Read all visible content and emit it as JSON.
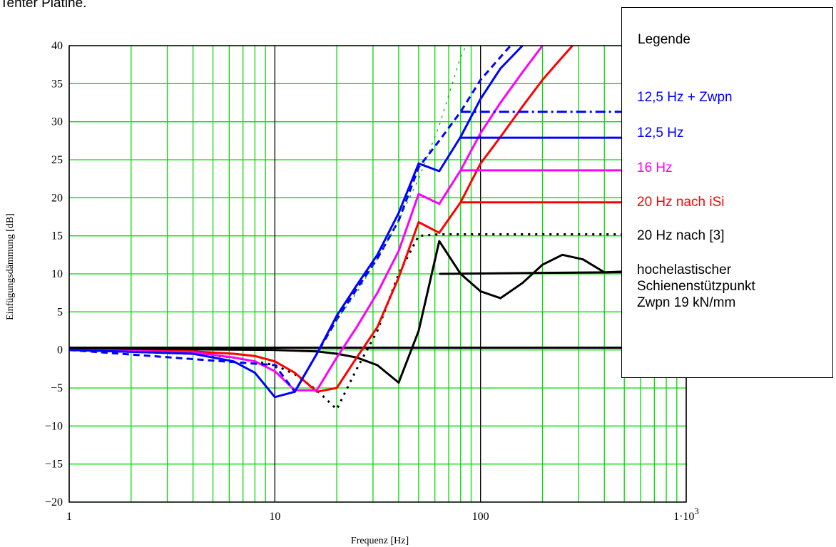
{
  "page": {
    "title_fragment": "Tenter Platine."
  },
  "colors": {
    "grid": "#00dd00",
    "major_grid": "#000000",
    "blue": "#0000ff",
    "magenta": "#ff00ff",
    "red": "#ff0000",
    "black": "#000000"
  },
  "legend": {
    "title": "Legende",
    "entries": [
      {
        "label": "12,5 Hz + Zwpn",
        "color": "#0000ff"
      },
      {
        "label": "12,5 Hz",
        "color": "#0000ff"
      },
      {
        "label": "16 Hz",
        "color": "#ff00ff"
      },
      {
        "label": "20 Hz nach iSi",
        "color": "#ff0000"
      },
      {
        "label": "20 Hz nach [3]",
        "color": "#000000"
      },
      {
        "label": "hochelastischer\nSchienenstützpunkt\nZwpn 19 kN/mm",
        "color": "#000000"
      }
    ]
  },
  "chart_data": {
    "type": "line",
    "xlabel": "Frequenz [Hz]",
    "ylabel": "Einfügungsdämmung [dB]",
    "x_scale": "log",
    "xlim": [
      1,
      1000
    ],
    "ylim": [
      -20,
      40
    ],
    "x_ticks": [
      {
        "value": 1,
        "label": "1"
      },
      {
        "value": 10,
        "label": "10"
      },
      {
        "value": 100,
        "label": "100"
      },
      {
        "value": 1000,
        "label": "1·10",
        "exp": "3"
      }
    ],
    "y_ticks": [
      {
        "value": 40,
        "label": "40"
      },
      {
        "value": 35,
        "label": "35"
      },
      {
        "value": 30,
        "label": "30"
      },
      {
        "value": 25,
        "label": "25"
      },
      {
        "value": 20,
        "label": "20"
      },
      {
        "value": 15,
        "label": "15"
      },
      {
        "value": 10,
        "label": "10"
      },
      {
        "value": 5,
        "label": "5"
      },
      {
        "value": 0,
        "label": "0"
      },
      {
        "value": -5,
        "label": "−5"
      },
      {
        "value": -10,
        "label": "−10"
      },
      {
        "value": -15,
        "label": "−15"
      },
      {
        "value": -20,
        "label": "−20"
      }
    ],
    "grid": true,
    "legend_position": "right",
    "series": [
      {
        "color": "#000000",
        "style": "solid",
        "width": 3,
        "points": [
          [
            1,
            0.3
          ],
          [
            1000,
            0.3
          ]
        ]
      },
      {
        "color": "#000000",
        "style": "solid",
        "width": 3,
        "points": [
          [
            1,
            0.2
          ],
          [
            10,
            0
          ],
          [
            16,
            -0.2
          ],
          [
            20,
            -0.5
          ],
          [
            25,
            -1
          ],
          [
            31.5,
            -2
          ],
          [
            40,
            -4.3
          ],
          [
            50,
            2.5
          ],
          [
            63,
            14.3
          ],
          [
            80,
            10
          ],
          [
            100,
            7.7
          ],
          [
            125,
            6.8
          ],
          [
            160,
            8.8
          ],
          [
            200,
            11.2
          ],
          [
            250,
            12.5
          ],
          [
            315,
            11.9
          ],
          [
            400,
            10.2
          ],
          [
            500,
            10.3
          ]
        ]
      },
      {
        "color": "#000000",
        "style": "solid",
        "width": 3,
        "points": [
          [
            63,
            10
          ],
          [
            1000,
            10.3
          ]
        ]
      },
      {
        "color": "#000000",
        "style": "dotted",
        "width": 3,
        "points": [
          [
            1,
            0
          ],
          [
            4,
            -0.5
          ],
          [
            6.3,
            -1
          ],
          [
            10,
            -2
          ],
          [
            12.5,
            -3.2
          ],
          [
            16,
            -5.3
          ],
          [
            20,
            -7.8
          ],
          [
            25,
            -2.5
          ],
          [
            31.5,
            2.5
          ],
          [
            40,
            10
          ],
          [
            50,
            15
          ],
          [
            63,
            15.2
          ],
          [
            1000,
            15.2
          ]
        ]
      },
      {
        "color": "#ff0000",
        "style": "solid",
        "width": 3,
        "points": [
          [
            1,
            0
          ],
          [
            4,
            -0.2
          ],
          [
            6.3,
            -0.5
          ],
          [
            8,
            -0.8
          ],
          [
            10,
            -1.5
          ],
          [
            12.5,
            -3
          ],
          [
            16,
            -5.5
          ],
          [
            20,
            -5
          ],
          [
            25,
            -1
          ],
          [
            31.5,
            3
          ],
          [
            40,
            9.5
          ],
          [
            50,
            16.8
          ],
          [
            63,
            15.4
          ],
          [
            80,
            19.4
          ],
          [
            100,
            24.5
          ],
          [
            125,
            28
          ],
          [
            160,
            32
          ],
          [
            200,
            35.5
          ],
          [
            250,
            38.5
          ],
          [
            280,
            40
          ]
        ]
      },
      {
        "color": "#ff0000",
        "style": "solid",
        "width": 3,
        "points": [
          [
            80,
            19.4
          ],
          [
            1000,
            19.4
          ]
        ]
      },
      {
        "color": "#ff00ff",
        "style": "solid",
        "width": 3,
        "points": [
          [
            1,
            0
          ],
          [
            4,
            -0.3
          ],
          [
            6.3,
            -1
          ],
          [
            8,
            -1.5
          ],
          [
            10,
            -2.8
          ],
          [
            12.5,
            -5.3
          ],
          [
            16,
            -5.3
          ],
          [
            20,
            -1
          ],
          [
            25,
            3
          ],
          [
            31.5,
            7.5
          ],
          [
            40,
            13
          ],
          [
            50,
            20.5
          ],
          [
            63,
            19.2
          ],
          [
            80,
            23.6
          ],
          [
            100,
            28.5
          ],
          [
            125,
            32.5
          ],
          [
            160,
            36.5
          ],
          [
            200,
            40
          ]
        ]
      },
      {
        "color": "#ff00ff",
        "style": "solid",
        "width": 3,
        "points": [
          [
            80,
            23.6
          ],
          [
            1000,
            23.6
          ]
        ]
      },
      {
        "color": "#0000ff",
        "style": "solid",
        "width": 3,
        "points": [
          [
            1,
            0
          ],
          [
            4,
            -0.5
          ],
          [
            6.3,
            -1.5
          ],
          [
            8,
            -3
          ],
          [
            10,
            -6.2
          ],
          [
            12.5,
            -5.5
          ],
          [
            16,
            -0.5
          ],
          [
            20,
            4.5
          ],
          [
            25,
            8.5
          ],
          [
            31.5,
            12.5
          ],
          [
            40,
            18
          ],
          [
            50,
            24.5
          ],
          [
            63,
            23.5
          ],
          [
            80,
            28
          ],
          [
            100,
            33
          ],
          [
            125,
            37
          ],
          [
            160,
            40
          ]
        ]
      },
      {
        "color": "#0000ff",
        "style": "solid",
        "width": 3,
        "points": [
          [
            80,
            27.9
          ],
          [
            1000,
            27.9
          ]
        ]
      },
      {
        "color": "#0000ff",
        "style": "dashed",
        "width": 3,
        "points": [
          [
            1,
            0
          ],
          [
            10,
            -2
          ],
          [
            12.5,
            -5.5
          ],
          [
            16,
            -0.5
          ],
          [
            20,
            4
          ],
          [
            25,
            8
          ],
          [
            31.5,
            12
          ],
          [
            40,
            17
          ],
          [
            50,
            24
          ],
          [
            63,
            27.5
          ],
          [
            80,
            31.3
          ],
          [
            100,
            35.5
          ],
          [
            125,
            38.5
          ],
          [
            140,
            40
          ]
        ]
      },
      {
        "color": "#0000ff",
        "style": "dashdot",
        "width": 3,
        "points": [
          [
            80,
            31.3
          ],
          [
            1000,
            31.3
          ]
        ]
      },
      {
        "color": "#00aa00",
        "style": "dotted",
        "width": 1.3,
        "points": [
          [
            20,
            4
          ],
          [
            25,
            7.5
          ],
          [
            31.5,
            12
          ],
          [
            40,
            17
          ],
          [
            50,
            22.5
          ],
          [
            63,
            29.5
          ],
          [
            80,
            38.5
          ],
          [
            85,
            40
          ]
        ]
      }
    ]
  }
}
